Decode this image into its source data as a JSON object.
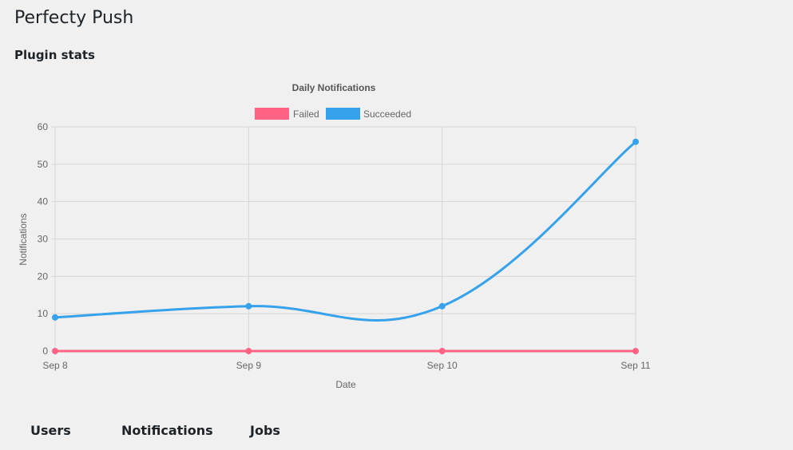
{
  "page": {
    "title": "Perfecty Push",
    "section_title": "Plugin stats"
  },
  "chart_data": {
    "type": "line",
    "title": "Daily Notifications",
    "xlabel": "Date",
    "ylabel": "Notifications",
    "categories": [
      "Sep 8",
      "Sep 9",
      "Sep 10",
      "Sep 11"
    ],
    "series": [
      {
        "name": "Failed",
        "values": [
          0,
          0,
          0,
          0
        ],
        "color": "#ff6384"
      },
      {
        "name": "Succeeded",
        "values": [
          9,
          12,
          12,
          56
        ],
        "color": "#36a2eb"
      }
    ],
    "ylim": [
      0,
      60
    ],
    "yticks": [
      0,
      10,
      20,
      30,
      40,
      50,
      60
    ],
    "grid": true,
    "legend_position": "top"
  },
  "bottom_tabs": [
    {
      "label": "Users"
    },
    {
      "label": "Notifications"
    },
    {
      "label": "Jobs"
    }
  ]
}
